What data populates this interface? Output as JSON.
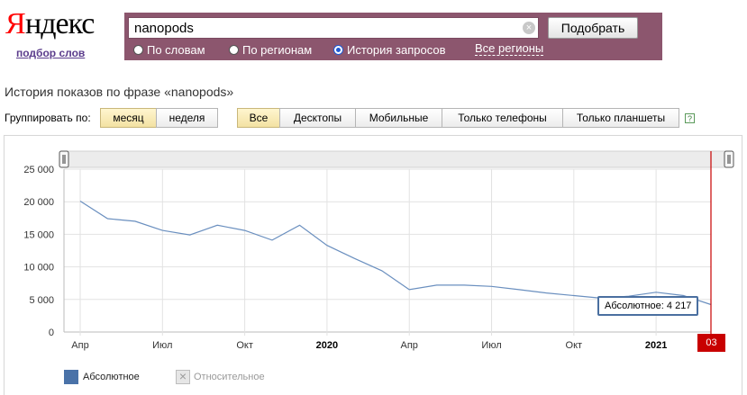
{
  "logo": {
    "first_letter": "Я",
    "rest": "ндекс",
    "subtitle": "подбор слов"
  },
  "search": {
    "value": "nanopods",
    "submit_label": "Подобрать",
    "clear_icon": "clear-icon"
  },
  "search_modes": [
    {
      "label": "По словам",
      "selected": false
    },
    {
      "label": "По регионам",
      "selected": false
    },
    {
      "label": "История запросов",
      "selected": true
    }
  ],
  "regions_link": "Все регионы",
  "page_title": "История показов по фразе «nanopods»",
  "grouping": {
    "label": "Группировать по:",
    "options": [
      {
        "label": "месяц",
        "active": true
      },
      {
        "label": "неделя",
        "active": false
      }
    ]
  },
  "devices": [
    {
      "label": "Все",
      "active": true
    },
    {
      "label": "Десктопы",
      "active": false
    },
    {
      "label": "Мобильные",
      "active": false
    },
    {
      "label": "Только телефоны",
      "active": false
    },
    {
      "label": "Только планшеты",
      "active": false
    }
  ],
  "help_label": "?",
  "colors": {
    "band": "#8c566e",
    "line": "#6a8fbf",
    "absolute": "#4a72a8",
    "current": "#c80000"
  },
  "chart_data": {
    "type": "line",
    "title": "",
    "xlabel": "",
    "ylabel": "",
    "ylim": [
      0,
      25000
    ],
    "y_ticks": [
      "25 000",
      "20 000",
      "15 000",
      "10 000",
      "5 000",
      "0"
    ],
    "y_tick_values": [
      25000,
      20000,
      15000,
      10000,
      5000,
      0
    ],
    "x_tick_labels": [
      {
        "label": "Апр",
        "index": 0,
        "bold": false
      },
      {
        "label": "Июл",
        "index": 3,
        "bold": false
      },
      {
        "label": "Окт",
        "index": 6,
        "bold": false
      },
      {
        "label": "2020",
        "index": 9,
        "bold": true
      },
      {
        "label": "Апр",
        "index": 12,
        "bold": false
      },
      {
        "label": "Июл",
        "index": 15,
        "bold": false
      },
      {
        "label": "Окт",
        "index": 18,
        "bold": false
      },
      {
        "label": "2021",
        "index": 21,
        "bold": true
      }
    ],
    "x": [
      "2019-04",
      "2019-05",
      "2019-06",
      "2019-07",
      "2019-08",
      "2019-09",
      "2019-10",
      "2019-11",
      "2019-12",
      "2020-01",
      "2020-02",
      "2020-03",
      "2020-04",
      "2020-05",
      "2020-06",
      "2020-07",
      "2020-08",
      "2020-09",
      "2020-10",
      "2020-11",
      "2020-12",
      "2021-01",
      "2021-02",
      "2021-03"
    ],
    "series": [
      {
        "name": "Абсолютное",
        "values": [
          20100,
          17400,
          17000,
          15600,
          14900,
          16400,
          15600,
          14100,
          16400,
          13300,
          11300,
          9400,
          6500,
          7200,
          7200,
          7000,
          6500,
          6000,
          5600,
          5200,
          5500,
          6100,
          5600,
          4217
        ]
      }
    ],
    "current_label": "03",
    "tooltip": "Абсолютное: 4 217",
    "legend": [
      {
        "label": "Абсолютное",
        "enabled": true
      },
      {
        "label": "Относительное",
        "enabled": false
      }
    ],
    "grid": true
  }
}
